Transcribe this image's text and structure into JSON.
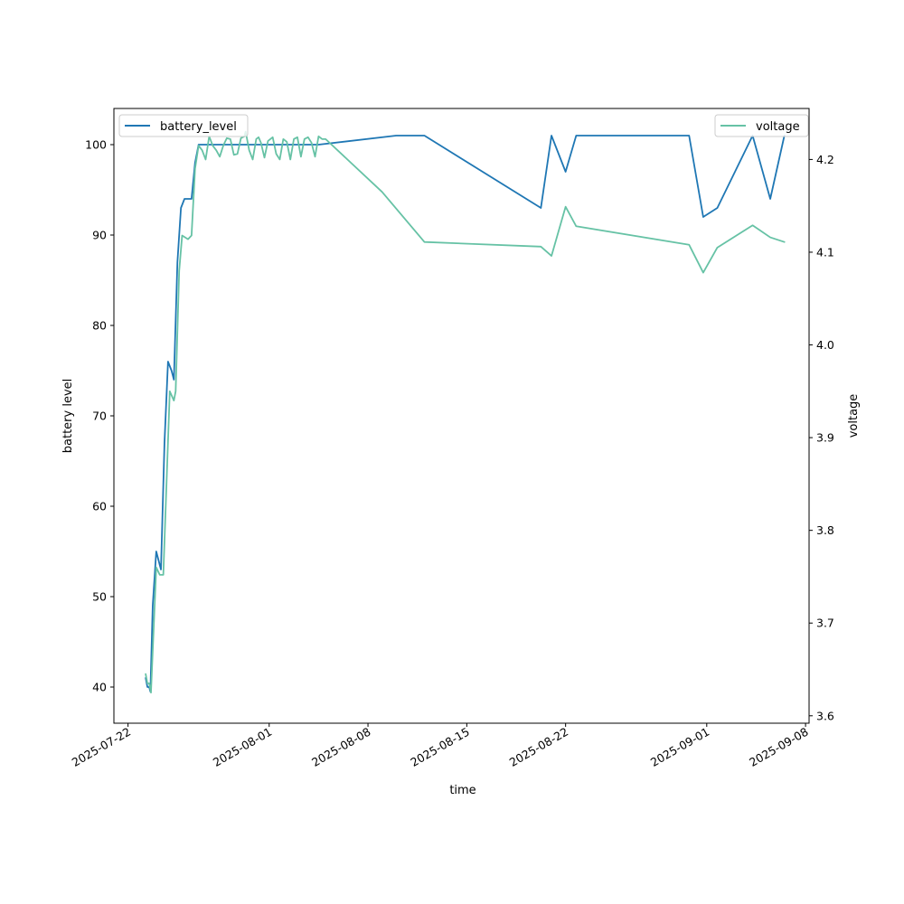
{
  "chart_data": {
    "type": "line",
    "xlabel": "time",
    "ylabel_left": "battery level",
    "ylabel_right": "voltage",
    "x_range": [
      "2025-07-21T00:00",
      "2025-09-08T06:00"
    ],
    "ylim_left": [
      36,
      104
    ],
    "ylim_right": [
      3.592,
      4.255
    ],
    "x_ticks": [
      "2025-07-22",
      "2025-08-01",
      "2025-08-08",
      "2025-08-15",
      "2025-08-22",
      "2025-09-01",
      "2025-09-08"
    ],
    "y_ticks_left": [
      40,
      50,
      60,
      70,
      80,
      90,
      100
    ],
    "y_ticks_right": [
      3.6,
      3.7,
      3.8,
      3.9,
      4.0,
      4.1,
      4.2
    ],
    "legend_left": {
      "label": "battery_level",
      "placement": "upper-left"
    },
    "legend_right": {
      "label": "voltage",
      "placement": "upper-right"
    },
    "grid": false,
    "series": [
      {
        "name": "battery_level",
        "axis": "left",
        "color": "#1f77b4",
        "points": [
          [
            "2025-07-23T06:00",
            41
          ],
          [
            "2025-07-23T09:00",
            40
          ],
          [
            "2025-07-23T12:00",
            40
          ],
          [
            "2025-07-23T14:00",
            39.5
          ],
          [
            "2025-07-23T18:00",
            49
          ],
          [
            "2025-07-24T00:00",
            55
          ],
          [
            "2025-07-24T08:00",
            53
          ],
          [
            "2025-07-24T14:00",
            67
          ],
          [
            "2025-07-24T20:00",
            76
          ],
          [
            "2025-07-25T02:00",
            75
          ],
          [
            "2025-07-25T06:00",
            74
          ],
          [
            "2025-07-25T12:00",
            87
          ],
          [
            "2025-07-25T18:00",
            93
          ],
          [
            "2025-07-26T00:00",
            94
          ],
          [
            "2025-07-26T12:00",
            94
          ],
          [
            "2025-07-26T18:00",
            98
          ],
          [
            "2025-07-27T00:00",
            100
          ],
          [
            "2025-08-04T12:00",
            100
          ],
          [
            "2025-08-10T00:00",
            101
          ],
          [
            "2025-08-12T00:00",
            101
          ],
          [
            "2025-08-20T06:00",
            93
          ],
          [
            "2025-08-21T00:00",
            101
          ],
          [
            "2025-08-22T00:00",
            97
          ],
          [
            "2025-08-22T18:00",
            101
          ],
          [
            "2025-08-30T18:00",
            101
          ],
          [
            "2025-08-31T18:00",
            92
          ],
          [
            "2025-09-01T18:00",
            93
          ],
          [
            "2025-09-04T06:00",
            101
          ],
          [
            "2025-09-05T12:00",
            94
          ],
          [
            "2025-09-06T12:00",
            101
          ]
        ]
      },
      {
        "name": "voltage",
        "axis": "right",
        "color": "#66c2a5",
        "points": [
          [
            "2025-07-23T06:00",
            3.645
          ],
          [
            "2025-07-23T09:00",
            3.635
          ],
          [
            "2025-07-23T12:00",
            3.635
          ],
          [
            "2025-07-23T15:00",
            3.625
          ],
          [
            "2025-07-23T20:00",
            3.7
          ],
          [
            "2025-07-24T00:00",
            3.76
          ],
          [
            "2025-07-24T06:00",
            3.752
          ],
          [
            "2025-07-24T12:00",
            3.752
          ],
          [
            "2025-07-24T18:00",
            3.86
          ],
          [
            "2025-07-24T23:00",
            3.95
          ],
          [
            "2025-07-25T06:00",
            3.94
          ],
          [
            "2025-07-25T09:00",
            3.95
          ],
          [
            "2025-07-25T15:00",
            4.08
          ],
          [
            "2025-07-25T20:00",
            4.118
          ],
          [
            "2025-07-26T06:00",
            4.114
          ],
          [
            "2025-07-26T12:00",
            4.118
          ],
          [
            "2025-07-26T18:00",
            4.19
          ],
          [
            "2025-07-27T00:00",
            4.215
          ],
          [
            "2025-07-27T06:00",
            4.21
          ],
          [
            "2025-07-27T12:00",
            4.2
          ],
          [
            "2025-07-27T18:00",
            4.225
          ],
          [
            "2025-07-28T00:00",
            4.215
          ],
          [
            "2025-07-28T06:00",
            4.21
          ],
          [
            "2025-07-28T12:00",
            4.203
          ],
          [
            "2025-07-28T18:00",
            4.215
          ],
          [
            "2025-07-29T00:00",
            4.223
          ],
          [
            "2025-07-29T06:00",
            4.222
          ],
          [
            "2025-07-29T12:00",
            4.205
          ],
          [
            "2025-07-29T18:00",
            4.206
          ],
          [
            "2025-07-30T00:00",
            4.223
          ],
          [
            "2025-07-30T06:00",
            4.225
          ],
          [
            "2025-07-30T08:00",
            4.23
          ],
          [
            "2025-07-30T14:00",
            4.21
          ],
          [
            "2025-07-30T20:00",
            4.2
          ],
          [
            "2025-07-31T02:00",
            4.222
          ],
          [
            "2025-07-31T06:00",
            4.224
          ],
          [
            "2025-07-31T10:00",
            4.218
          ],
          [
            "2025-07-31T16:00",
            4.202
          ],
          [
            "2025-07-31T22:00",
            4.22
          ],
          [
            "2025-08-01T06:00",
            4.224
          ],
          [
            "2025-08-01T12:00",
            4.206
          ],
          [
            "2025-08-01T18:00",
            4.2
          ],
          [
            "2025-08-02T00:00",
            4.222
          ],
          [
            "2025-08-02T06:00",
            4.219
          ],
          [
            "2025-08-02T12:00",
            4.2
          ],
          [
            "2025-08-02T18:00",
            4.222
          ],
          [
            "2025-08-03T00:00",
            4.224
          ],
          [
            "2025-08-03T06:00",
            4.203
          ],
          [
            "2025-08-03T12:00",
            4.222
          ],
          [
            "2025-08-03T18:00",
            4.224
          ],
          [
            "2025-08-04T00:00",
            4.218
          ],
          [
            "2025-08-04T06:00",
            4.203
          ],
          [
            "2025-08-04T12:00",
            4.225
          ],
          [
            "2025-08-04T18:00",
            4.222
          ],
          [
            "2025-08-05T00:00",
            4.222
          ],
          [
            "2025-08-09T00:00",
            4.165
          ],
          [
            "2025-08-12T00:00",
            4.111
          ],
          [
            "2025-08-20T06:00",
            4.106
          ],
          [
            "2025-08-21T00:00",
            4.096
          ],
          [
            "2025-08-22T00:00",
            4.149
          ],
          [
            "2025-08-22T18:00",
            4.128
          ],
          [
            "2025-08-30T18:00",
            4.108
          ],
          [
            "2025-08-31T18:00",
            4.078
          ],
          [
            "2025-09-01T18:00",
            4.105
          ],
          [
            "2025-09-04T06:00",
            4.129
          ],
          [
            "2025-09-05T12:00",
            4.116
          ],
          [
            "2025-09-06T12:00",
            4.111
          ]
        ]
      }
    ]
  }
}
